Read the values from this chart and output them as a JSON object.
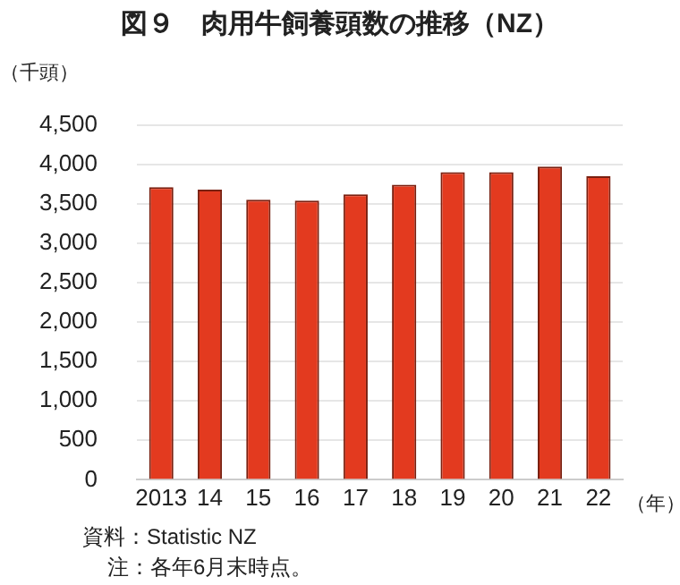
{
  "chart_data": {
    "type": "bar",
    "title": "図９　肉用牛飼養頭数の推移（NZ）",
    "ylabel": "（千頭）",
    "xlabel": "（年）",
    "categories": [
      "2013",
      "14",
      "15",
      "16",
      "17",
      "18",
      "19",
      "20",
      "21",
      "22"
    ],
    "values": [
      3710,
      3680,
      3550,
      3540,
      3620,
      3740,
      3900,
      3900,
      3970,
      3850
    ],
    "color": "#e33a1f",
    "ylim": [
      0,
      4500
    ],
    "yticks": [
      0,
      500,
      {
        "value": 1000,
        "label": "1,000"
      },
      {
        "value": 1500,
        "label": "1,500"
      },
      {
        "value": 2000,
        "label": "2,000"
      },
      {
        "value": 2500,
        "label": "2,500"
      },
      {
        "value": 3000,
        "label": "3,000"
      },
      {
        "value": 3500,
        "label": "3,500"
      },
      {
        "value": 4000,
        "label": "4,000"
      },
      {
        "value": 4500,
        "label": "4,500"
      }
    ],
    "grid": "y",
    "annotations": [
      "資料：Statistic NZ",
      "注：各年6月末時点。"
    ]
  }
}
